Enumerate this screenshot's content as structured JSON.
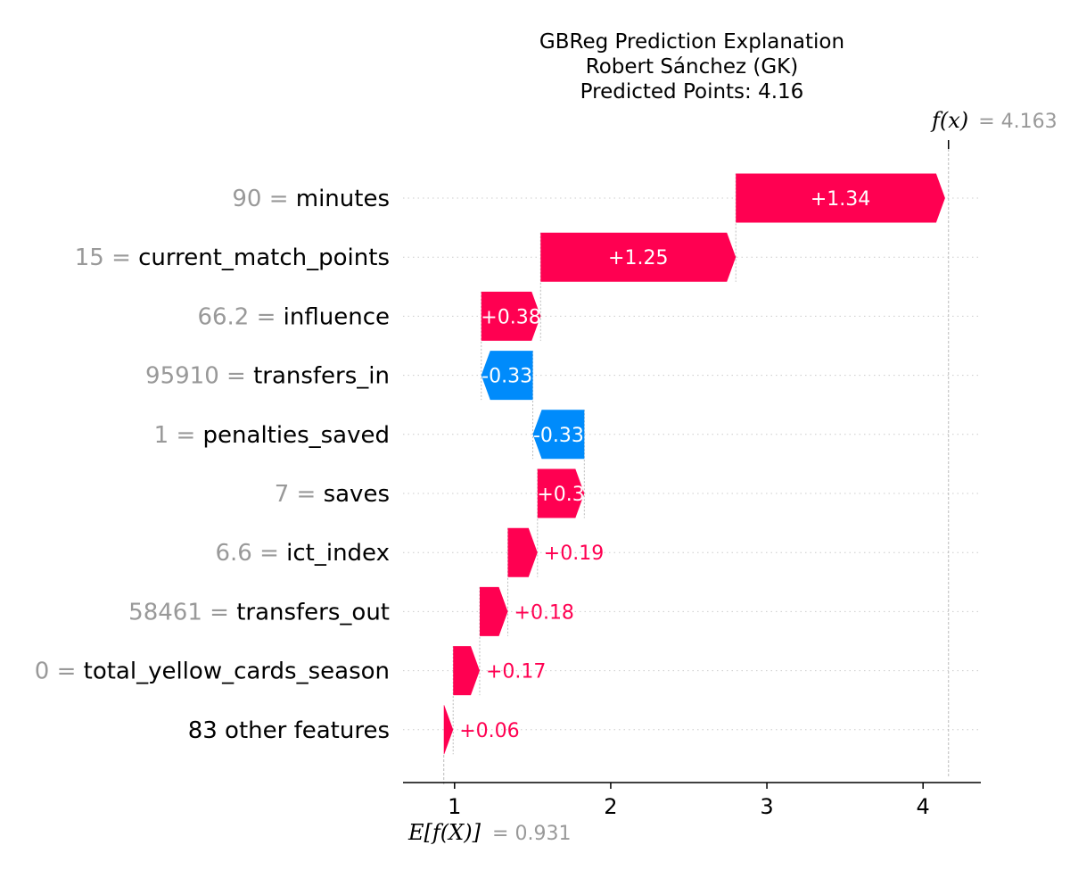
{
  "chart_data": {
    "type": "waterfall",
    "title_lines": [
      "GBReg Prediction Explanation",
      "Robert Sánchez (GK)",
      "Predicted Points: 4.16"
    ],
    "base_value": 0.931,
    "base_label_symbol": "E[f(X)]",
    "base_label_value": "= 0.931",
    "final_value": 4.163,
    "final_label_symbol": "f(x)",
    "final_label_value": "= 4.163",
    "xlim": [
      0.67,
      4.37
    ],
    "xticks": [
      1,
      2,
      3,
      4
    ],
    "xtick_labels": [
      "1",
      "2",
      "3",
      "4"
    ],
    "features": [
      {
        "value": "90",
        "name": "minutes",
        "contribution": 1.34,
        "label": "+1.34"
      },
      {
        "value": "15",
        "name": "current_match_points",
        "contribution": 1.25,
        "label": "+1.25"
      },
      {
        "value": "66.2",
        "name": "influence",
        "contribution": 0.38,
        "label": "+0.38"
      },
      {
        "value": "95910",
        "name": "transfers_in",
        "contribution": -0.33,
        "label": "-0.33"
      },
      {
        "value": "1",
        "name": "penalties_saved",
        "contribution": -0.33,
        "label": "-0.33"
      },
      {
        "value": "7",
        "name": "saves",
        "contribution": 0.3,
        "label": "+0.3"
      },
      {
        "value": "6.6",
        "name": "ict_index",
        "contribution": 0.19,
        "label": "+0.19"
      },
      {
        "value": "58461",
        "name": "transfers_out",
        "contribution": 0.18,
        "label": "+0.18"
      },
      {
        "value": "0",
        "name": "total_yellow_cards_season",
        "contribution": 0.17,
        "label": "+0.17"
      },
      {
        "value": "",
        "name": "83 other features",
        "contribution": 0.06,
        "label": "+0.06"
      }
    ],
    "colors": {
      "positive": "#ff0051",
      "negative": "#008bfb",
      "label_gray": "#999999"
    }
  }
}
